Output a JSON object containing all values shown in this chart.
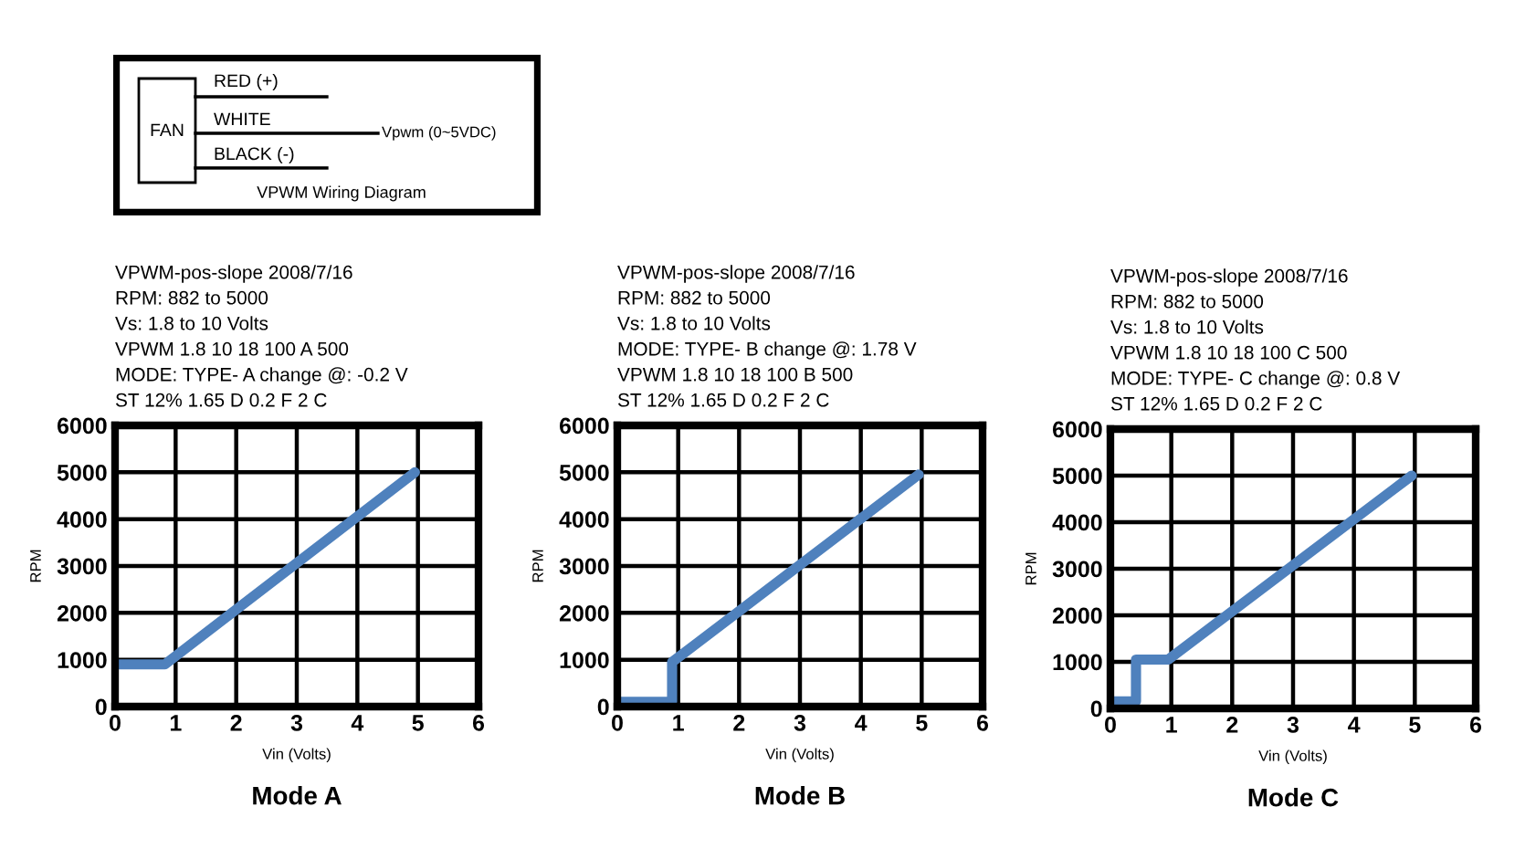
{
  "chart_data": [
    {
      "type": "other",
      "annotations": [
        "FAN",
        "RED (+)",
        "WHITE",
        "BLACK (-)",
        "Vpwm (0~5VDC)",
        "VPWM Wiring Diagram"
      ]
    },
    {
      "type": "line",
      "title": "Mode A",
      "annotations": [
        "VPWM-pos-slope 2008/7/16",
        "RPM: 882 to 5000",
        "Vs: 1.8 to 10 Volts",
        "VPWM 1.8 10 18 100 A 500",
        "MODE: TYPE- A change @: -0.2 V",
        "ST 12% 1.65 D 0.2 F 2 C"
      ],
      "xlabel": "Vin (Volts)",
      "ylabel": "RPM",
      "series": [
        {
          "color": "#4f81bd",
          "x": [
            0.05,
            0.82,
            4.95
          ],
          "values": [
            900,
            900,
            5000
          ]
        }
      ],
      "xlim": [
        0,
        6
      ],
      "xticks": [
        0,
        1,
        2,
        3,
        4,
        5,
        6
      ],
      "ylim": [
        0,
        6000
      ],
      "yticks": [
        0,
        1000,
        2000,
        3000,
        4000,
        5000,
        6000
      ],
      "grid": true
    },
    {
      "type": "line",
      "title": "Mode B",
      "annotations": [
        "VPWM-pos-slope 2008/7/16",
        "RPM: 882 to 5000",
        "Vs: 1.8 to 10 Volts",
        "MODE: TYPE- B change @: 1.78 V",
        "VPWM 1.8 10 18 100 B 500",
        "ST 12% 1.65 D 0.2 F 2 C"
      ],
      "xlabel": "Vin (Volts)",
      "ylabel": "RPM",
      "series": [
        {
          "color": "#4f81bd",
          "x": [
            0.05,
            0.9,
            0.9,
            4.95
          ],
          "values": [
            100,
            100,
            950,
            4950
          ]
        }
      ],
      "xlim": [
        0,
        6
      ],
      "xticks": [
        0,
        1,
        2,
        3,
        4,
        5,
        6
      ],
      "ylim": [
        0,
        6000
      ],
      "yticks": [
        0,
        1000,
        2000,
        3000,
        4000,
        5000,
        6000
      ],
      "grid": true
    },
    {
      "type": "line",
      "title": "Mode C",
      "annotations": [
        "VPWM-pos-slope 2008/7/16",
        "RPM: 882 to 5000",
        "Vs: 1.8 to 10 Volts",
        "VPWM 1.8 10 18 100 C 500",
        "MODE: TYPE- C change @: 0.8 V",
        "ST 12% 1.65 D 0.2 F 2 C"
      ],
      "xlabel": "Vin (Volts)",
      "ylabel": "RPM",
      "series": [
        {
          "color": "#4f81bd",
          "x": [
            0.05,
            0.42,
            0.42,
            0.95,
            4.95
          ],
          "values": [
            150,
            150,
            1050,
            1050,
            5000
          ]
        }
      ],
      "xlim": [
        0,
        6
      ],
      "xticks": [
        0,
        1,
        2,
        3,
        4,
        5,
        6
      ],
      "ylim": [
        0,
        6000
      ],
      "yticks": [
        0,
        1000,
        2000,
        3000,
        4000,
        5000,
        6000
      ],
      "grid": true
    }
  ]
}
